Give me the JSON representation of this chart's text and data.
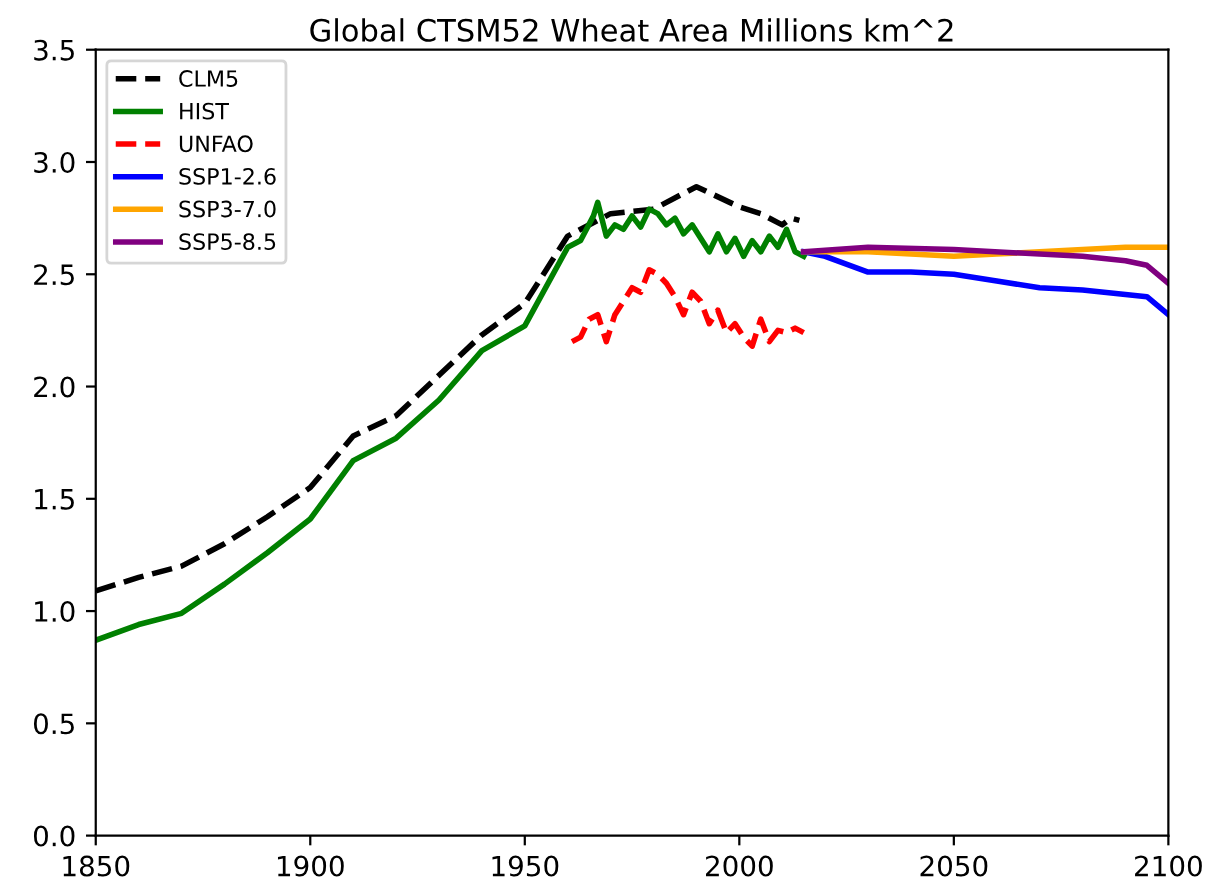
{
  "chart_data": {
    "type": "line",
    "title": "Global CTSM52 Wheat Area Millions km^2",
    "xlim": [
      1850,
      2100
    ],
    "xticks": [
      1850,
      1900,
      1950,
      2000,
      2050,
      2100
    ],
    "ylim": [
      0,
      3.5
    ],
    "yticks": [
      {
        "value": 0,
        "label": "0.0"
      },
      0.5,
      {
        "value": 1,
        "label": "1.0"
      },
      1.5,
      {
        "value": 2,
        "label": "2.0"
      },
      2.5,
      {
        "value": 3,
        "label": "3.0"
      },
      3.5
    ],
    "grid": false,
    "legend": "top left",
    "marker": "none",
    "series": [
      {
        "name": "CLM5",
        "color": "#000000",
        "line_style": "dashed",
        "x": [
          1850,
          1860,
          1870,
          1880,
          1890,
          1900,
          1910,
          1920,
          1930,
          1940,
          1950,
          1960,
          1970,
          1980,
          1990,
          2000,
          2005,
          2010,
          2012,
          2014
        ],
        "values": [
          1.09,
          1.15,
          1.2,
          1.3,
          1.42,
          1.55,
          1.78,
          1.87,
          2.05,
          2.23,
          2.37,
          2.67,
          2.77,
          2.79,
          2.89,
          2.8,
          2.77,
          2.72,
          2.75,
          2.74
        ]
      },
      {
        "name": "HIST",
        "color": "#008000",
        "line_style": "solid",
        "x": [
          1850,
          1860,
          1870,
          1880,
          1890,
          1900,
          1910,
          1920,
          1930,
          1940,
          1950,
          1960,
          1963,
          1966,
          1967,
          1969,
          1971,
          1973,
          1975,
          1977,
          1979,
          1981,
          1983,
          1985,
          1987,
          1989,
          1991,
          1993,
          1995,
          1997,
          1999,
          2001,
          2003,
          2005,
          2007,
          2009,
          2011,
          2013,
          2015
        ],
        "values": [
          0.87,
          0.94,
          0.99,
          1.12,
          1.26,
          1.41,
          1.67,
          1.77,
          1.94,
          2.16,
          2.27,
          2.62,
          2.65,
          2.76,
          2.82,
          2.67,
          2.72,
          2.7,
          2.76,
          2.71,
          2.79,
          2.77,
          2.72,
          2.75,
          2.68,
          2.72,
          2.66,
          2.6,
          2.68,
          2.6,
          2.66,
          2.58,
          2.65,
          2.6,
          2.67,
          2.62,
          2.7,
          2.6,
          2.58
        ]
      },
      {
        "name": "UNFAO",
        "color": "#ff0000",
        "line_style": "dashed",
        "x": [
          1961,
          1963,
          1965,
          1967,
          1969,
          1971,
          1973,
          1975,
          1977,
          1979,
          1981,
          1983,
          1985,
          1987,
          1989,
          1991,
          1993,
          1995,
          1997,
          1999,
          2001,
          2003,
          2005,
          2007,
          2009,
          2011,
          2013,
          2015
        ],
        "values": [
          2.2,
          2.22,
          2.3,
          2.32,
          2.2,
          2.32,
          2.38,
          2.44,
          2.42,
          2.52,
          2.5,
          2.46,
          2.4,
          2.32,
          2.42,
          2.38,
          2.28,
          2.34,
          2.24,
          2.28,
          2.22,
          2.18,
          2.3,
          2.2,
          2.25,
          2.24,
          2.26,
          2.24
        ]
      },
      {
        "name": "SSP1-2.6",
        "color": "#0000ff",
        "line_style": "solid",
        "x": [
          2015,
          2020,
          2030,
          2040,
          2050,
          2060,
          2070,
          2080,
          2090,
          2095,
          2100
        ],
        "values": [
          2.6,
          2.58,
          2.51,
          2.51,
          2.5,
          2.47,
          2.44,
          2.43,
          2.41,
          2.4,
          2.32
        ]
      },
      {
        "name": "SSP3-7.0",
        "color": "#ffa500",
        "line_style": "solid",
        "x": [
          2015,
          2030,
          2050,
          2060,
          2070,
          2080,
          2090,
          2100
        ],
        "values": [
          2.6,
          2.6,
          2.58,
          2.59,
          2.6,
          2.61,
          2.62,
          2.62
        ]
      },
      {
        "name": "SSP5-8.5",
        "color": "#800080",
        "line_style": "solid",
        "x": [
          2015,
          2030,
          2050,
          2070,
          2080,
          2090,
          2095,
          2100
        ],
        "values": [
          2.6,
          2.62,
          2.61,
          2.59,
          2.58,
          2.56,
          2.54,
          2.46
        ]
      }
    ]
  }
}
